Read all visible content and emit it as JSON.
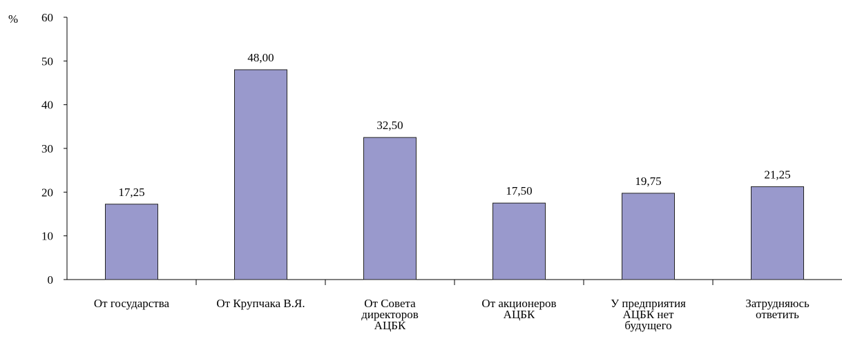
{
  "chart_data": {
    "type": "bar",
    "y_label": "%",
    "categories": [
      [
        "От  государства"
      ],
      [
        "От Крупчака В.Я."
      ],
      [
        "От Совета",
        "директоров",
        "АЦБК"
      ],
      [
        "От акционеров",
        "АЦБК"
      ],
      [
        "У предприятия",
        "АЦБК нет",
        "будущего"
      ],
      [
        "Затрудняюсь",
        "ответить"
      ]
    ],
    "values": [
      17.25,
      48,
      32.5,
      17.5,
      19.75,
      21.25
    ],
    "value_labels": [
      "17,25",
      "48,00",
      "32,50",
      "17,50",
      "19,75",
      "21,25"
    ],
    "color": "#9999cc",
    "ylim": [
      0,
      60
    ],
    "yticks": [
      0,
      10,
      20,
      30,
      40,
      50,
      60
    ]
  }
}
